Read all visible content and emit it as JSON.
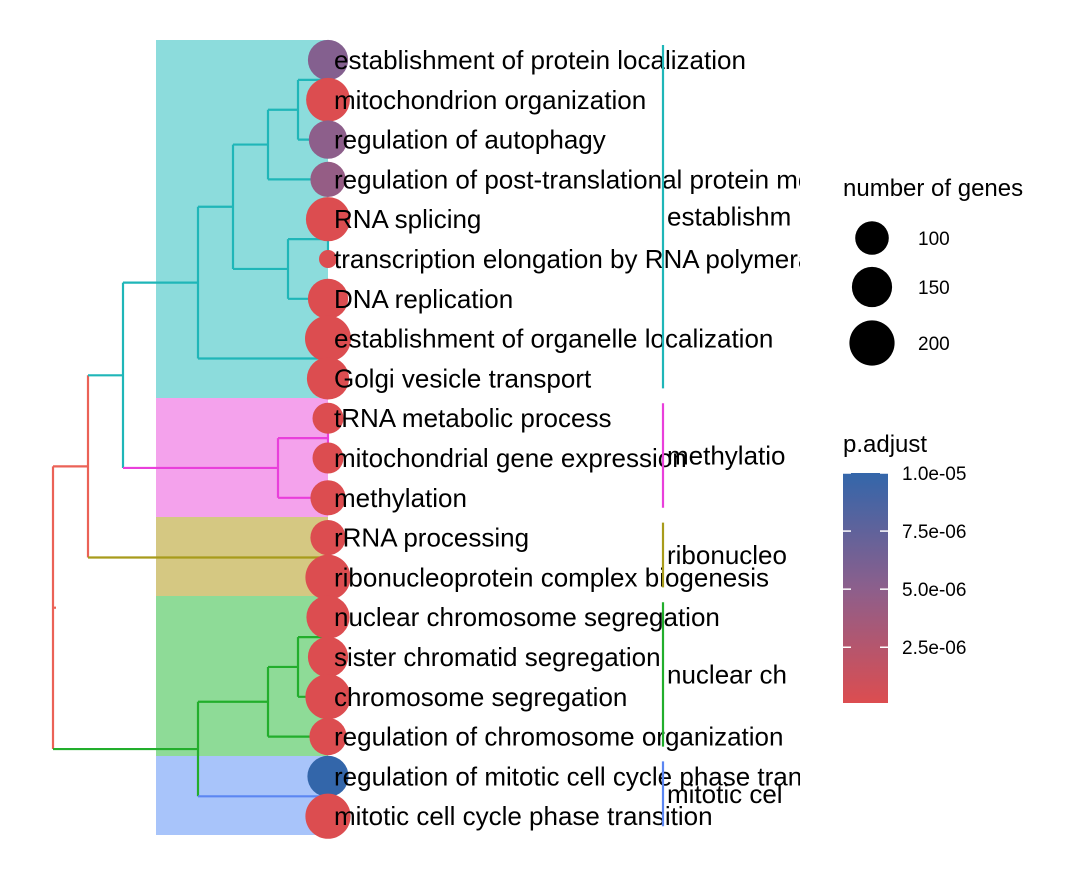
{
  "chart_data": {
    "type": "treeplot",
    "terms": [
      {
        "label": "establishment of protein localization",
        "count": 150,
        "p_adjust": 5.5e-06
      },
      {
        "label": "mitochondrion organization",
        "count": 185,
        "p_adjust": 1e-07
      },
      {
        "label": "regulation of autophagy",
        "count": 135,
        "p_adjust": 5e-06
      },
      {
        "label": "regulation of post-translational protein modification",
        "count": 110,
        "p_adjust": 4.5e-06
      },
      {
        "label": "RNA splicing",
        "count": 190,
        "p_adjust": 1e-07
      },
      {
        "label": "transcription elongation by RNA polymerase",
        "count": 50,
        "p_adjust": 1e-07
      },
      {
        "label": "DNA replication",
        "count": 150,
        "p_adjust": 1e-07
      },
      {
        "label": "establishment of organelle localization",
        "count": 210,
        "p_adjust": 1e-07
      },
      {
        "label": "Golgi vesicle transport",
        "count": 170,
        "p_adjust": 1e-07
      },
      {
        "label": "tRNA metabolic process",
        "count": 85,
        "p_adjust": 1e-07
      },
      {
        "label": "mitochondrial gene expression",
        "count": 85,
        "p_adjust": 1e-07
      },
      {
        "label": "methylation",
        "count": 110,
        "p_adjust": 1e-07
      },
      {
        "label": "rRNA processing",
        "count": 110,
        "p_adjust": 1e-07
      },
      {
        "label": "ribonucleoprotein complex biogenesis",
        "count": 200,
        "p_adjust": 1e-07
      },
      {
        "label": "nuclear chromosome segregation",
        "count": 180,
        "p_adjust": 1e-07
      },
      {
        "label": "sister chromatid segregation",
        "count": 150,
        "p_adjust": 1e-07
      },
      {
        "label": "chromosome segregation",
        "count": 200,
        "p_adjust": 1e-07
      },
      {
        "label": "regulation of chromosome organization",
        "count": 125,
        "p_adjust": 1e-07
      },
      {
        "label": "regulation of mitotic cell cycle phase transition",
        "count": 160,
        "p_adjust": 1e-05
      },
      {
        "label": "mitotic cell cycle phase transition",
        "count": 200,
        "p_adjust": 1e-07
      }
    ],
    "clusters": [
      {
        "label": "establishm",
        "first": 0,
        "last": 8,
        "color": "#1fb6b8",
        "band_color": "#8cdcdc"
      },
      {
        "label": "methylatio",
        "first": 9,
        "last": 11,
        "color": "#e93fdb",
        "band_color": "#f4a2ec"
      },
      {
        "label": "ribonucleo",
        "first": 12,
        "last": 13,
        "color": "#a89b1b",
        "band_color": "#d5c882"
      },
      {
        "label": "nuclear ch",
        "first": 14,
        "last": 17,
        "color": "#22ae2c",
        "band_color": "#8edb97"
      },
      {
        "label": "mitotic cel",
        "first": 18,
        "last": 19,
        "color": "#5b86f2",
        "band_color": "#a8c4fa"
      }
    ],
    "tree": {
      "root_color": "#eb6257",
      "nodes": [
        {
          "id": "c0a",
          "children": [
            0,
            1
          ],
          "depth": 2.15,
          "color": "#1fb6b8"
        },
        {
          "id": "c0b",
          "children": [
            "c0a",
            2
          ],
          "depth": 2.45,
          "color": "#1fb6b8"
        },
        {
          "id": "c0c",
          "children": [
            "c0b",
            3
          ],
          "depth": 2.75,
          "color": "#1fb6b8"
        },
        {
          "id": "c0d",
          "children": [
            4,
            5
          ],
          "depth": 2.15,
          "color": "#1fb6b8"
        },
        {
          "id": "c0e",
          "children": [
            "c0d",
            6
          ],
          "depth": 2.55,
          "color": "#1fb6b8"
        },
        {
          "id": "c0f",
          "children": [
            "c0c",
            "c0e"
          ],
          "depth": 3.1,
          "color": "#1fb6b8"
        },
        {
          "id": "c0g",
          "children": [
            7,
            8
          ],
          "depth": 2.15,
          "color": "#1fb6b8"
        },
        {
          "id": "c0h",
          "children": [
            "c0f",
            "c0g"
          ],
          "depth": 3.45,
          "color": "#1fb6b8"
        },
        {
          "id": "c1a",
          "children": [
            9,
            10
          ],
          "depth": 2.15,
          "color": "#e93fdb"
        },
        {
          "id": "c1b",
          "children": [
            "c1a",
            11
          ],
          "depth": 2.65,
          "color": "#e93fdb"
        },
        {
          "id": "n01",
          "children": [
            "c0h",
            "c1b"
          ],
          "depth": 4.2,
          "color": "#1fb6b8"
        },
        {
          "id": "c2a",
          "children": [
            12,
            13
          ],
          "depth": 2.15,
          "color": "#a89b1b"
        },
        {
          "id": "n012",
          "children": [
            "n01",
            "c2a"
          ],
          "depth": 4.55,
          "color": "#eb6257"
        },
        {
          "id": "c3a",
          "children": [
            14,
            15
          ],
          "depth": 2.15,
          "color": "#22ae2c"
        },
        {
          "id": "c3b",
          "children": [
            "c3a",
            16
          ],
          "depth": 2.45,
          "color": "#22ae2c"
        },
        {
          "id": "c3c",
          "children": [
            "c3b",
            17
          ],
          "depth": 2.75,
          "color": "#22ae2c"
        },
        {
          "id": "c4a",
          "children": [
            18,
            19
          ],
          "depth": 2.15,
          "color": "#5b86f2"
        },
        {
          "id": "n34",
          "children": [
            "c3c",
            "c4a"
          ],
          "depth": 3.45,
          "color": "#22ae2c"
        },
        {
          "id": "root",
          "children": [
            "n012",
            "n34"
          ],
          "depth": 4.9,
          "color": "#eb6257"
        }
      ]
    },
    "size_legend": {
      "title": "number of genes",
      "breaks": [
        100,
        150,
        200
      ],
      "labels": [
        "100",
        "150",
        "200"
      ]
    },
    "color_legend": {
      "title": "p.adjust",
      "breaks": [
        1e-05,
        7.5e-06,
        5e-06,
        2.5e-06
      ],
      "labels": [
        "1.0e-05",
        "7.5e-06",
        "5.0e-06",
        "2.5e-06"
      ],
      "range": [
        1e-07,
        1e-05
      ],
      "low_color": "#dc4d50",
      "high_color": "#3366aa"
    }
  }
}
